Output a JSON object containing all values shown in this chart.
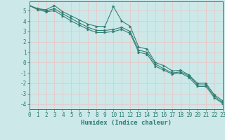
{
  "xlabel": "Humidex (Indice chaleur)",
  "bg_color": "#cce8e8",
  "grid_color": "#e8c8c8",
  "line_color": "#2e7d72",
  "line1": {
    "x": [
      0,
      1,
      2,
      3,
      4,
      5,
      6,
      7,
      8,
      9,
      10,
      11,
      12,
      13,
      14,
      15,
      16,
      17,
      18,
      19,
      20,
      21,
      22,
      23
    ],
    "y": [
      5.5,
      5.2,
      5.1,
      5.5,
      4.9,
      4.5,
      4.1,
      3.7,
      3.5,
      3.5,
      5.4,
      4.0,
      3.5,
      1.5,
      1.3,
      0.0,
      -0.3,
      -0.8,
      -0.75,
      -1.2,
      -2.0,
      -2.0,
      -3.1,
      -3.7
    ]
  },
  "line2": {
    "x": [
      0,
      1,
      2,
      3,
      4,
      5,
      6,
      7,
      8,
      9,
      10,
      11,
      12,
      13,
      14,
      15,
      16,
      17,
      18,
      19,
      20,
      21,
      22,
      23
    ],
    "y": [
      5.5,
      5.2,
      5.0,
      5.2,
      4.7,
      4.25,
      3.8,
      3.4,
      3.1,
      3.1,
      3.2,
      3.4,
      3.0,
      1.2,
      1.0,
      -0.15,
      -0.6,
      -1.0,
      -0.9,
      -1.3,
      -2.15,
      -2.15,
      -3.25,
      -3.85
    ]
  },
  "line3": {
    "x": [
      0,
      1,
      2,
      3,
      4,
      5,
      6,
      7,
      8,
      9,
      10,
      11,
      12,
      13,
      14,
      15,
      16,
      17,
      18,
      19,
      20,
      21,
      22,
      23
    ],
    "y": [
      5.5,
      5.1,
      4.9,
      5.0,
      4.5,
      4.0,
      3.6,
      3.2,
      2.9,
      2.9,
      3.0,
      3.2,
      2.8,
      1.0,
      0.8,
      -0.35,
      -0.75,
      -1.1,
      -1.0,
      -1.45,
      -2.3,
      -2.3,
      -3.4,
      -3.95
    ]
  },
  "xlim": [
    0,
    23
  ],
  "ylim": [
    -4.5,
    5.9
  ],
  "yticks": [
    -4,
    -3,
    -2,
    -1,
    0,
    1,
    2,
    3,
    4,
    5
  ],
  "xticks": [
    0,
    1,
    2,
    3,
    4,
    5,
    6,
    7,
    8,
    9,
    10,
    11,
    12,
    13,
    14,
    15,
    16,
    17,
    18,
    19,
    20,
    21,
    22,
    23
  ]
}
